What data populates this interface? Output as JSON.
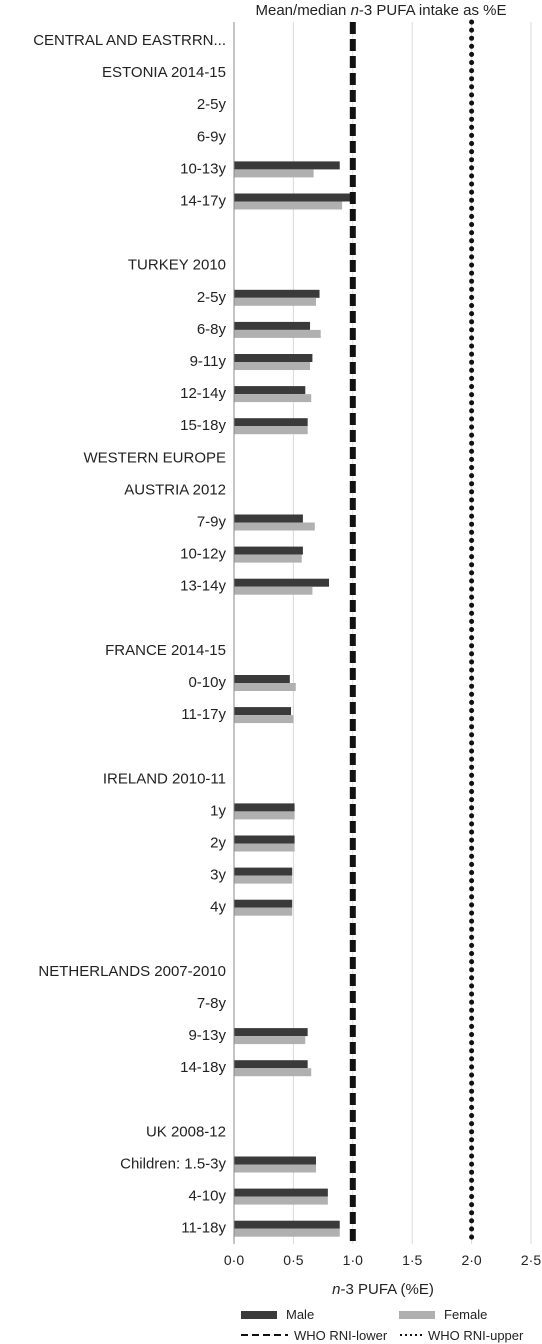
{
  "chart_data": {
    "type": "bar",
    "orientation": "horizontal",
    "title_parts": [
      {
        "text": "Mean/median ",
        "italic": false
      },
      {
        "text": "n",
        "italic": true
      },
      {
        "text": "-3 PUFA intake as %E",
        "italic": false
      }
    ],
    "xlabel_parts": [
      {
        "text": "n",
        "italic": true
      },
      {
        "text": "-3 PUFA (%E)",
        "italic": false
      }
    ],
    "xlim": [
      0,
      2.5
    ],
    "xticks": [
      {
        "value": 0,
        "label": "0·0"
      },
      {
        "value": 0.5,
        "label": "0·5"
      },
      {
        "value": 1.0,
        "label": "1·0"
      },
      {
        "value": 1.5,
        "label": "1·5"
      },
      {
        "value": 2.0,
        "label": "2·0"
      },
      {
        "value": 2.5,
        "label": "2·5"
      }
    ],
    "grid": "vertical",
    "series": [
      {
        "name": "Male",
        "color": "#3a3a3a"
      },
      {
        "name": "Female",
        "color": "#b0b0b0"
      }
    ],
    "reference_lines": [
      {
        "name": "WHO RNI-lower",
        "value": 1.0,
        "style": "dashed"
      },
      {
        "name": "WHO RNI-upper",
        "value": 2.0,
        "style": "dotted"
      }
    ],
    "categories": [
      {
        "label": "CENTRAL AND EASTRRN...",
        "male": null,
        "female": null
      },
      {
        "label": "ESTONIA 2014-15",
        "male": null,
        "female": null
      },
      {
        "label": "2-5y",
        "male": null,
        "female": null
      },
      {
        "label": "6-9y",
        "male": null,
        "female": null
      },
      {
        "label": "10-13y",
        "male": 0.89,
        "female": 0.67
      },
      {
        "label": "14-17y",
        "male": 0.98,
        "female": 0.91
      },
      {
        "label": "",
        "male": null,
        "female": null
      },
      {
        "label": "TURKEY 2010",
        "male": null,
        "female": null
      },
      {
        "label": "2-5y",
        "male": 0.72,
        "female": 0.69
      },
      {
        "label": "6-8y",
        "male": 0.64,
        "female": 0.73
      },
      {
        "label": "9-11y",
        "male": 0.66,
        "female": 0.64
      },
      {
        "label": "12-14y",
        "male": 0.6,
        "female": 0.65
      },
      {
        "label": "15-18y",
        "male": 0.62,
        "female": 0.62
      },
      {
        "label": "WESTERN EUROPE",
        "male": null,
        "female": null
      },
      {
        "label": "AUSTRIA 2012",
        "male": null,
        "female": null
      },
      {
        "label": "7-9y",
        "male": 0.58,
        "female": 0.68
      },
      {
        "label": "10-12y",
        "male": 0.58,
        "female": 0.57
      },
      {
        "label": "13-14y",
        "male": 0.8,
        "female": 0.66
      },
      {
        "label": "",
        "male": null,
        "female": null
      },
      {
        "label": "FRANCE 2014-15",
        "male": null,
        "female": null
      },
      {
        "label": "0-10y",
        "male": 0.47,
        "female": 0.52
      },
      {
        "label": "11-17y",
        "male": 0.48,
        "female": 0.5
      },
      {
        "label": "",
        "male": null,
        "female": null
      },
      {
        "label": "IRELAND 2010-11",
        "male": null,
        "female": null
      },
      {
        "label": "1y",
        "male": 0.51,
        "female": 0.51
      },
      {
        "label": "2y",
        "male": 0.51,
        "female": 0.51
      },
      {
        "label": "3y",
        "male": 0.49,
        "female": 0.49
      },
      {
        "label": "4y",
        "male": 0.49,
        "female": 0.49
      },
      {
        "label": "",
        "male": null,
        "female": null
      },
      {
        "label": "NETHERLANDS 2007-2010",
        "male": null,
        "female": null
      },
      {
        "label": "7-8y",
        "male": null,
        "female": null
      },
      {
        "label": "9-13y",
        "male": 0.62,
        "female": 0.6
      },
      {
        "label": "14-18y",
        "male": 0.62,
        "female": 0.65
      },
      {
        "label": "",
        "male": null,
        "female": null
      },
      {
        "label": "UK 2008-12",
        "male": null,
        "female": null
      },
      {
        "label": "Children: 1.5-3y",
        "male": 0.69,
        "female": 0.69
      },
      {
        "label": "4-10y",
        "male": 0.79,
        "female": 0.79
      },
      {
        "label": "11-18y",
        "male": 0.89,
        "female": 0.89
      }
    ],
    "legend": {
      "position": "bottom"
    }
  }
}
